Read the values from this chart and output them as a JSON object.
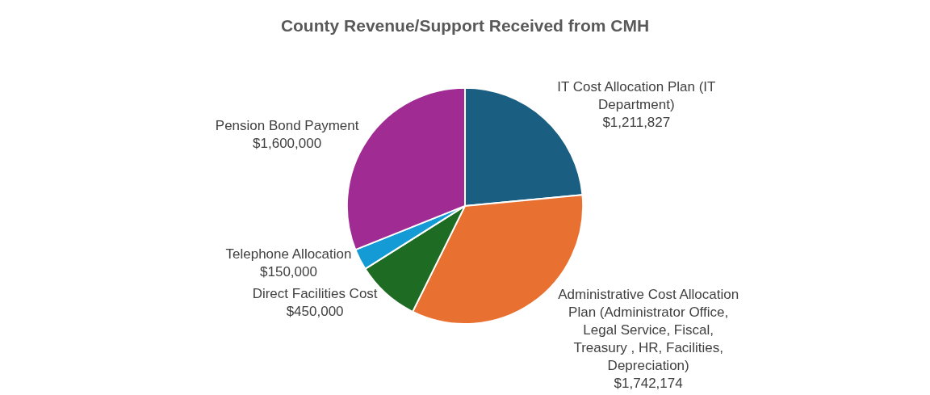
{
  "chart_data": {
    "type": "pie",
    "title": "County Revenue/Support Received from CMH",
    "categories": [
      "IT Cost Allocation Plan (IT Department)",
      "Administrative Cost Allocation Plan (Administrator Office, Legal Service, Fiscal, Treasury , HR, Facilities, Depreciation)",
      "Direct Facilities Cost",
      "Telephone Allocation",
      "Pension Bond Payment"
    ],
    "values": [
      1211827,
      1742174,
      450000,
      150000,
      1600000
    ],
    "value_labels": [
      "$1,211,827",
      "$1,742,174",
      "$450,000",
      "$150,000",
      "$1,600,000"
    ],
    "colors": [
      "#1a5f82",
      "#e87132",
      "#1e6b24",
      "#149bd6",
      "#a02b93"
    ],
    "legend": false
  }
}
